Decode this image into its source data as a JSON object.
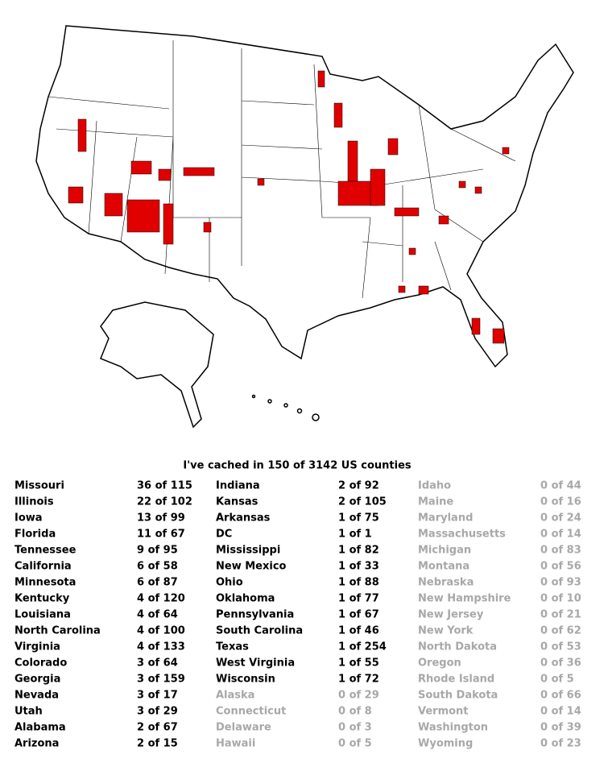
{
  "title": "I've cached in 150 of 3142 US counties",
  "table": {
    "columns": [
      [
        {
          "state": "Missouri",
          "count": "36 of 115"
        },
        {
          "state": "Illinois",
          "count": "22 of 102"
        },
        {
          "state": "Iowa",
          "count": "13 of 99"
        },
        {
          "state": "Florida",
          "count": "11 of 67"
        },
        {
          "state": "Tennessee",
          "count": "9 of 95"
        },
        {
          "state": "California",
          "count": "6 of 58"
        },
        {
          "state": "Minnesota",
          "count": "6 of 87"
        },
        {
          "state": "Kentucky",
          "count": "4 of 120"
        },
        {
          "state": "Louisiana",
          "count": "4 of 64"
        },
        {
          "state": "North Carolina",
          "count": "4 of 100"
        },
        {
          "state": "Virginia",
          "count": "4 of 133"
        },
        {
          "state": "Colorado",
          "count": "3 of 64"
        },
        {
          "state": "Georgia",
          "count": "3 of 159"
        },
        {
          "state": "Nevada",
          "count": "3 of 17"
        },
        {
          "state": "Utah",
          "count": "3 of 29"
        },
        {
          "state": "Alabama",
          "count": "2 of 67"
        },
        {
          "state": "Arizona",
          "count": "2 of 15"
        }
      ],
      [
        {
          "state": "Indiana",
          "count": "2 of 92"
        },
        {
          "state": "Kansas",
          "count": "2 of 105"
        },
        {
          "state": "Arkansas",
          "count": "1 of 75"
        },
        {
          "state": "DC",
          "count": "1 of 1"
        },
        {
          "state": "Mississippi",
          "count": "1 of 82"
        },
        {
          "state": "New Mexico",
          "count": "1 of 33"
        },
        {
          "state": "Ohio",
          "count": "1 of 88"
        },
        {
          "state": "Oklahoma",
          "count": "1 of 77"
        },
        {
          "state": "Pennsylvania",
          "count": "1 of 67"
        },
        {
          "state": "South Carolina",
          "count": "1 of 46"
        },
        {
          "state": "Texas",
          "count": "1 of 254"
        },
        {
          "state": "West Virginia",
          "count": "1 of 55"
        },
        {
          "state": "Wisconsin",
          "count": "1 of 72"
        },
        {
          "state": "Alaska",
          "count": "0 of 29"
        },
        {
          "state": "Connecticut",
          "count": "0 of 8"
        },
        {
          "state": "Delaware",
          "count": "0 of 3"
        },
        {
          "state": "Hawaii",
          "count": "0 of 5"
        }
      ],
      [
        {
          "state": "Idaho",
          "count": "0 of 44"
        },
        {
          "state": "Maine",
          "count": "0 of 16"
        },
        {
          "state": "Maryland",
          "count": "0 of 24"
        },
        {
          "state": "Massachusetts",
          "count": "0 of 14"
        },
        {
          "state": "Michigan",
          "count": "0 of 83"
        },
        {
          "state": "Montana",
          "count": "0 of 56"
        },
        {
          "state": "Nebraska",
          "count": "0 of 93"
        },
        {
          "state": "New Hampshire",
          "count": "0 of 10"
        },
        {
          "state": "New Jersey",
          "count": "0 of 21"
        },
        {
          "state": "New York",
          "count": "0 of 62"
        },
        {
          "state": "North Dakota",
          "count": "0 of 53"
        },
        {
          "state": "Oregon",
          "count": "0 of 36"
        },
        {
          "state": "Rhode Island",
          "count": "0 of 5"
        },
        {
          "state": "South Dakota",
          "count": "0 of 66"
        },
        {
          "state": "Vermont",
          "count": "0 of 14"
        },
        {
          "state": "Washington",
          "count": "0 of 39"
        },
        {
          "state": "Wyoming",
          "count": "0 of 23"
        }
      ]
    ]
  }
}
